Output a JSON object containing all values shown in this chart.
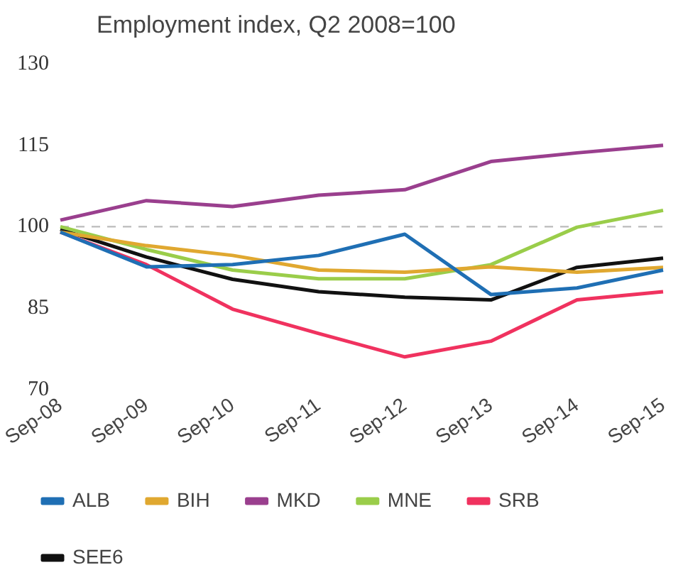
{
  "chart_data": {
    "type": "line",
    "title": "Employment index, Q2 2008=100",
    "categories": [
      "Sep-08",
      "Sep-09",
      "Sep-10",
      "Sep-11",
      "Sep-12",
      "Sep-13",
      "Sep-14",
      "Sep-15"
    ],
    "series": [
      {
        "name": "ALB",
        "color": "#1f6fb4",
        "values": [
          99,
          92.6,
          93,
          94.7,
          98.6,
          87.5,
          88.7,
          92
        ]
      },
      {
        "name": "BIH",
        "color": "#e0a830",
        "values": [
          99,
          96.5,
          94.7,
          92,
          91.6,
          92.6,
          91.6,
          92.5
        ]
      },
      {
        "name": "MKD",
        "color": "#9a3f8e",
        "values": [
          101.2,
          104.8,
          103.7,
          105.8,
          106.8,
          112,
          113.6,
          115
        ]
      },
      {
        "name": "MNE",
        "color": "#9acd4a",
        "values": [
          100,
          95.8,
          92,
          90.4,
          90.4,
          93,
          99.9,
          103
        ]
      },
      {
        "name": "SRB",
        "color": "#f0325f",
        "values": [
          99,
          93,
          84.8,
          80.3,
          76,
          78.9,
          86.5,
          88
        ]
      },
      {
        "name": "SEE6",
        "color": "#111111",
        "values": [
          99.5,
          94.4,
          90.3,
          88,
          87,
          86.5,
          92.5,
          94.2
        ]
      }
    ],
    "ylim": [
      70,
      130
    ],
    "yticks": [
      70,
      85,
      100,
      115,
      130
    ],
    "ref_lines": [
      {
        "axis": "y",
        "value": 100,
        "color": "#bbbbbb",
        "line_style": "dashed"
      }
    ],
    "grid": false,
    "legend": "bottom",
    "marker": "none",
    "line_style": "solid"
  }
}
